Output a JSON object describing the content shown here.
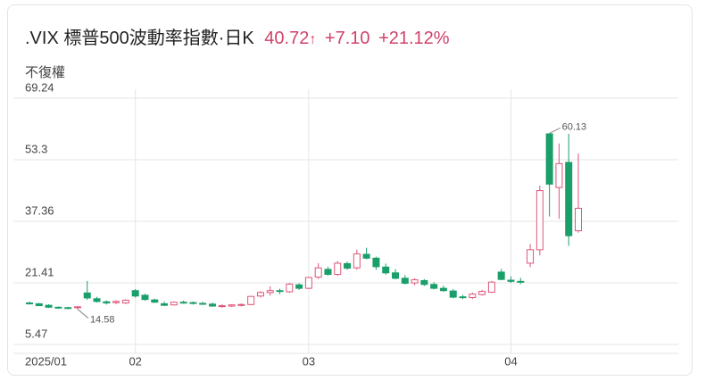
{
  "header": {
    "title": ".VIX 標普500波動率指數·日K",
    "price": "40.72",
    "change": "+7.10",
    "change_pct": "+21.12%"
  },
  "chart_data": {
    "type": "candlestick",
    "subtitle": "不復權",
    "categories": [
      "2025/01",
      null,
      null,
      null,
      null,
      null,
      null,
      null,
      null,
      null,
      null,
      "02",
      null,
      null,
      null,
      null,
      null,
      null,
      null,
      null,
      null,
      null,
      null,
      null,
      null,
      null,
      null,
      null,
      null,
      "03",
      null,
      null,
      null,
      null,
      null,
      null,
      null,
      null,
      null,
      null,
      null,
      null,
      null,
      null,
      null,
      null,
      null,
      null,
      null,
      null,
      "04",
      null,
      null,
      null,
      null,
      null,
      null,
      null
    ],
    "open": [
      16.2,
      16.0,
      15.6,
      15.1,
      15.0,
      15.0,
      18.8,
      17.3,
      16.5,
      16.3,
      16.2,
      19.4,
      18.2,
      17.0,
      16.0,
      15.7,
      16.4,
      16.3,
      16.1,
      15.9,
      15.4,
      15.4,
      15.6,
      15.8,
      18.0,
      18.9,
      19.4,
      19.1,
      20.9,
      20.0,
      22.9,
      24.9,
      23.6,
      26.4,
      25.3,
      28.8,
      27.8,
      25.5,
      24.0,
      22.6,
      21.4,
      22.0,
      21.0,
      20.0,
      19.3,
      17.8,
      17.6,
      18.4,
      19.0,
      24.2,
      22.1,
      21.8,
      26.5,
      30.0,
      60.0,
      46.1,
      52.6,
      34.9
    ],
    "high": [
      16.6,
      16.2,
      15.9,
      15.3,
      15.2,
      15.4,
      21.9,
      17.8,
      16.9,
      16.9,
      17.2,
      19.8,
      18.6,
      17.3,
      16.6,
      16.6,
      16.8,
      16.6,
      16.5,
      16.3,
      15.9,
      15.9,
      16.1,
      18.0,
      19.3,
      20.5,
      19.9,
      21.4,
      21.3,
      23.0,
      26.5,
      25.6,
      27.1,
      26.9,
      30.0,
      30.5,
      28.2,
      26.4,
      25.0,
      23.4,
      22.6,
      22.4,
      21.6,
      20.7,
      19.8,
      18.3,
      18.9,
      19.6,
      21.9,
      25.0,
      23.1,
      22.7,
      31.5,
      46.6,
      60.13,
      57.5,
      60.0,
      54.9
    ],
    "low": [
      15.8,
      15.4,
      14.9,
      14.7,
      14.6,
      14.58,
      17.0,
      16.3,
      15.8,
      15.9,
      15.9,
      17.6,
      16.8,
      16.2,
      15.4,
      15.5,
      16.0,
      15.8,
      15.7,
      15.2,
      15.0,
      15.2,
      15.3,
      15.6,
      17.6,
      18.1,
      18.5,
      18.8,
      19.6,
      19.8,
      22.4,
      23.3,
      23.2,
      24.8,
      24.8,
      27.5,
      24.8,
      23.5,
      22.3,
      21.0,
      20.8,
      20.6,
      19.7,
      19.1,
      17.4,
      17.2,
      17.2,
      18.1,
      18.8,
      22.1,
      21.4,
      21.1,
      25.5,
      28.5,
      38.6,
      38.0,
      31.0,
      34.4
    ],
    "close": [
      16.0,
      15.5,
      15.1,
      14.9,
      14.8,
      15.2,
      17.5,
      16.6,
      16.2,
      16.6,
      16.9,
      18.0,
      17.1,
      16.4,
      15.6,
      16.4,
      16.3,
      16.1,
      15.9,
      15.4,
      15.5,
      15.7,
      15.8,
      17.9,
      18.9,
      19.4,
      19.2,
      21.1,
      20.0,
      22.8,
      25.3,
      23.6,
      26.5,
      25.2,
      28.9,
      27.8,
      25.6,
      24.0,
      22.6,
      21.3,
      22.2,
      21.0,
      20.0,
      19.4,
      17.7,
      17.6,
      18.5,
      19.2,
      21.6,
      22.3,
      21.8,
      21.6,
      30.0,
      45.3,
      46.98,
      52.3,
      33.62,
      40.72
    ],
    "up_color": "#e0557a",
    "down_color": "#1a9e6a",
    "ylim": [
      5.47,
      69.24
    ],
    "yticks": [
      5.47,
      21.41,
      37.36,
      53.3,
      69.24
    ],
    "grid": true
  }
}
